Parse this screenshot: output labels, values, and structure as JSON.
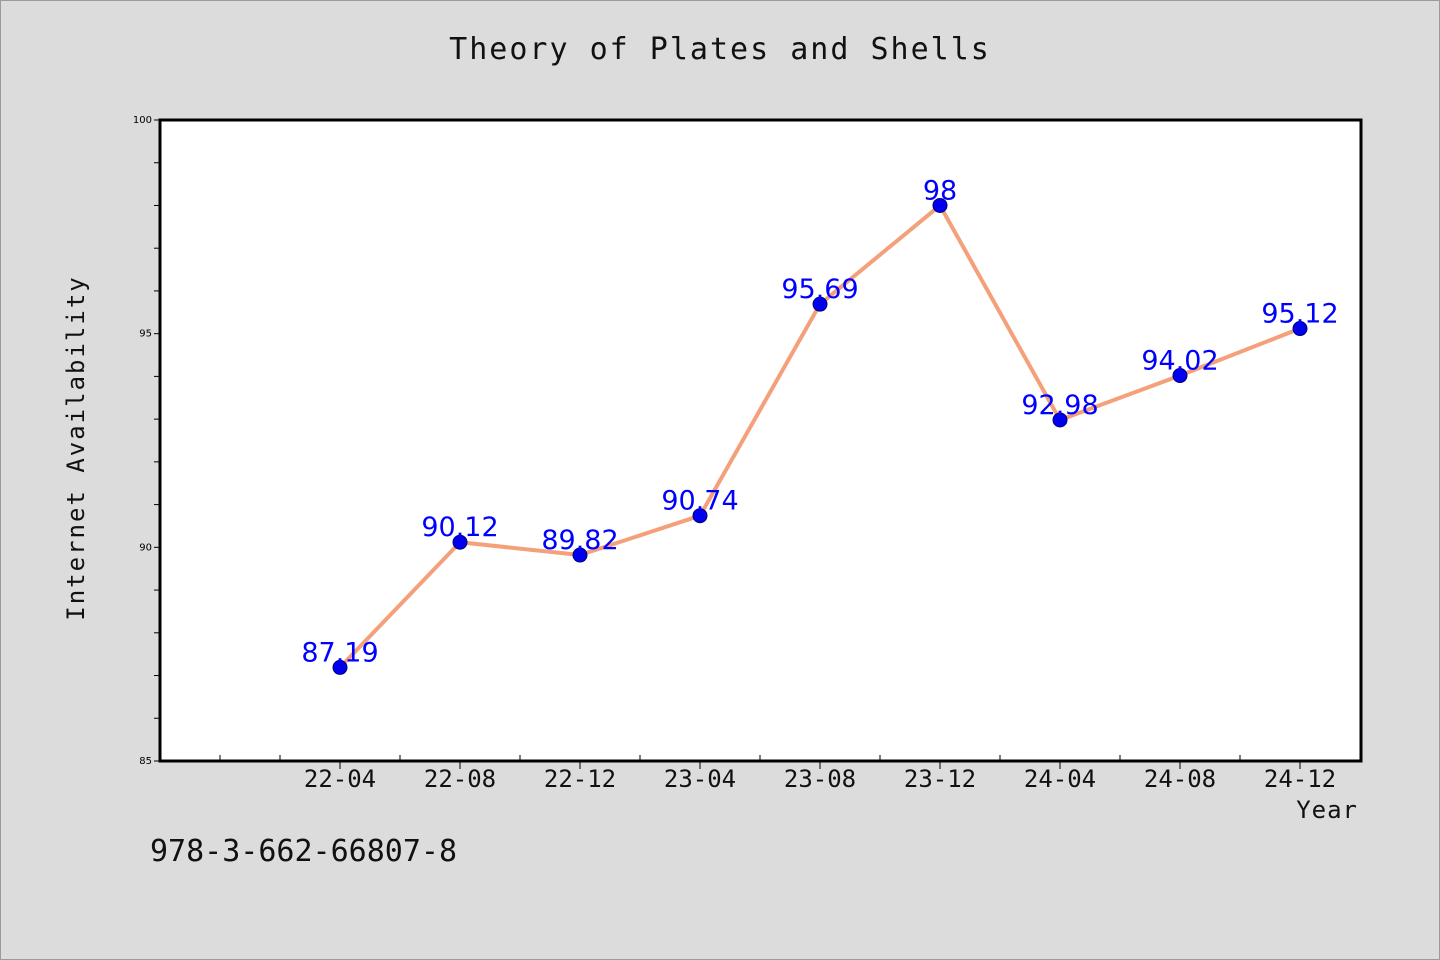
{
  "chart_data": {
    "type": "line",
    "title": "Theory of Plates and Shells",
    "xlabel": "Year",
    "ylabel": "Internet Availability",
    "categories": [
      "22-04",
      "22-08",
      "22-12",
      "23-04",
      "23-08",
      "23-12",
      "24-04",
      "24-08",
      "24-12"
    ],
    "series": [
      {
        "values": [
          87.19,
          90.12,
          89.82,
          90.74,
          95.69,
          98,
          92.98,
          94.02,
          95.12
        ],
        "labels": [
          "87.19",
          "90.12",
          "89.82",
          "90.74",
          "95.69",
          "98",
          "92.98",
          "94.02",
          "95.12"
        ],
        "line_color": "#f4a07a",
        "marker_color": "#0000ee"
      }
    ],
    "ylim": [
      85,
      100
    ],
    "yticks": [
      85,
      90,
      95,
      100
    ],
    "ytick_labels": [
      "85",
      "90",
      "95",
      "100"
    ],
    "grid": false,
    "label_color": "#0000ff"
  },
  "footer": {
    "isbn": "978-3-662-66807-8"
  }
}
